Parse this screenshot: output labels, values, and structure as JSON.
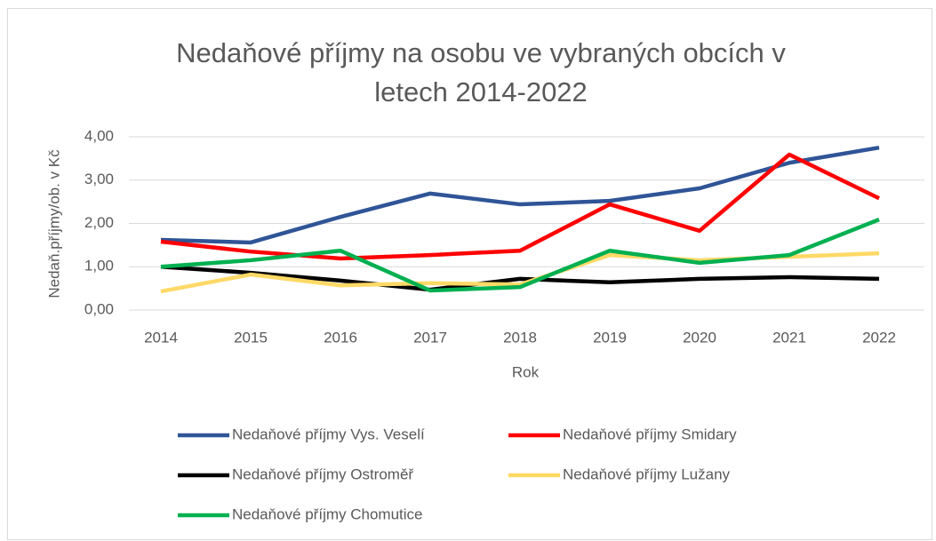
{
  "chart_data": {
    "type": "line",
    "title": "Nedaňové příjmy na osobu ve vybraných obcích v letech 2014-2022",
    "x_label": "Rok",
    "y_label": "Nedaň.příjmy/ob. v Kč",
    "categories": [
      "2014",
      "2015",
      "2016",
      "2017",
      "2018",
      "2019",
      "2020",
      "2021",
      "2022"
    ],
    "ylim": [
      0,
      4
    ],
    "yticks": [
      {
        "value": 0,
        "label": "0,00"
      },
      {
        "value": 1,
        "label": "1,00"
      },
      {
        "value": 2,
        "label": "2,00"
      },
      {
        "value": 3,
        "label": "3,00"
      },
      {
        "value": 4,
        "label": "4,00"
      }
    ],
    "grid": true,
    "legend": "bottom",
    "series": [
      {
        "name": "Nedaňové příjmy Vys. Veselí",
        "color": "#2f5597",
        "values": [
          1.62,
          1.56,
          2.15,
          2.69,
          2.44,
          2.52,
          2.81,
          3.4,
          3.75
        ]
      },
      {
        "name": "Nedaňové příjmy Smidary",
        "color": "#ff0000",
        "values": [
          1.58,
          1.35,
          1.19,
          1.27,
          1.37,
          2.44,
          1.83,
          3.59,
          2.58
        ]
      },
      {
        "name": "Nedaňové příjmy Ostroměř",
        "color": "#000000",
        "values": [
          1.0,
          0.86,
          0.68,
          0.47,
          0.72,
          0.64,
          0.72,
          0.76,
          0.72
        ]
      },
      {
        "name": "Nedaňové příjmy Lužany",
        "color": "#ffd966",
        "values": [
          0.43,
          0.82,
          0.57,
          0.62,
          0.59,
          1.27,
          1.15,
          1.23,
          1.31
        ]
      },
      {
        "name": "Nedaňové příjmy Chomutice",
        "color": "#00b050",
        "values": [
          1.0,
          1.15,
          1.37,
          0.45,
          0.53,
          1.37,
          1.09,
          1.27,
          2.09
        ]
      }
    ]
  }
}
